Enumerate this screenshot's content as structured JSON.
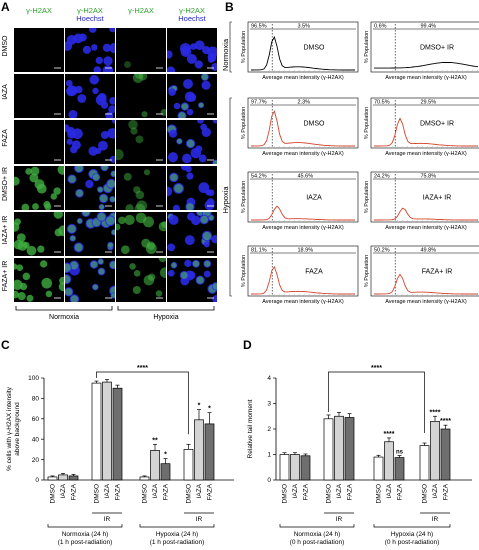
{
  "panel_labels": {
    "A": "A",
    "B": "B",
    "C": "C",
    "D": "D"
  },
  "panelA": {
    "col_headers": [
      {
        "line1": "γ-H2AX",
        "line2": "",
        "color1": "#2ca02c",
        "color2": ""
      },
      {
        "line1": "γ-H2AX",
        "line2": "Hoechst",
        "color1": "#2ca02c",
        "color2": "#1f1fcf"
      },
      {
        "line1": "γ-H2AX",
        "line2": "",
        "color1": "#2ca02c",
        "color2": ""
      },
      {
        "line1": "γ-H2AX",
        "line2": "Hoechst",
        "color1": "#2ca02c",
        "color2": "#1f1fcf"
      }
    ],
    "rows": [
      "DMSO",
      "IAZA",
      "FAZA",
      "DMSO+ IR",
      "IAZA+ IR",
      "FAZA+ IR"
    ],
    "bottom_labels": [
      "Normoxia",
      "Hypoxia"
    ]
  },
  "panelB": {
    "side_labels": [
      "Normoxia",
      "Hypoxia"
    ],
    "xlabel": "Average mean intensity (γ-H2AX)",
    "ylabel": "% Population",
    "plots": [
      {
        "label": "DMSO",
        "left": "96.5%",
        "right": "3.5%"
      },
      {
        "label": "DMSO+ IR",
        "left": "0.6%",
        "right": "99.4%"
      },
      {
        "label": "DMSO",
        "left": "97.7%",
        "right": "2.3%"
      },
      {
        "label": "DMSO+ IR",
        "left": "70.5%",
        "right": "29.5%"
      },
      {
        "label": "IAZA",
        "left": "54.2%",
        "right": "45.6%"
      },
      {
        "label": "IAZA+ IR",
        "left": "24.2%",
        "right": "75.8%"
      },
      {
        "label": "FAZA",
        "left": "81.1%",
        "right": "18.9%"
      },
      {
        "label": "FAZA+ IR",
        "left": "50.2%",
        "right": "49.8%"
      }
    ]
  },
  "panelC": {
    "ylabel_line1": "% cells with γ-H2AX intensity",
    "ylabel_line2": "above background",
    "y_ticks": [
      "0",
      "20",
      "40",
      "60",
      "80",
      "100"
    ],
    "categories": [
      "DMSO",
      "IAZA",
      "FAZA",
      "DMSO",
      "IAZA",
      "FAZA",
      "DMSO",
      "IAZA",
      "FAZA",
      "DMSO",
      "IAZA",
      "FAZA"
    ],
    "ir_label": "IR",
    "group_labels": [
      "Normoxia (24 h)",
      "Hypoxia (24 h)"
    ],
    "group_sublabels": [
      "(1 h post-radiation)",
      "(1 h post-radiation)"
    ],
    "sig_bracket": "****",
    "sig_marks": [
      "",
      "",
      "",
      "",
      "",
      "",
      "",
      "**",
      "*",
      "",
      "*",
      "*"
    ]
  },
  "panelD": {
    "ylabel": "Relative tail moment",
    "y_ticks": [
      "0",
      "1",
      "2",
      "3",
      "4"
    ],
    "categories": [
      "DMSO",
      "IAZA",
      "FAZA",
      "DMSO",
      "IAZA",
      "FAZA",
      "DMSO",
      "IAZA",
      "FAZA",
      "DMSO",
      "IAZA",
      "FAZA"
    ],
    "ir_label": "IR",
    "group_labels": [
      "Normoxia (24 h)",
      "Hypoxia (24 h)"
    ],
    "group_sublabels": [
      "(0 h post-radiation)",
      "(0 h post-radiation)"
    ],
    "sig_bracket": "****",
    "sig_marks": [
      "",
      "",
      "",
      "",
      "",
      "",
      "",
      "****",
      "ns",
      "",
      "****",
      "****"
    ]
  },
  "chart_data": [
    {
      "type": "bar",
      "title": "",
      "ylabel": "% cells with γ-H2AX intensity above background",
      "ylim": [
        0,
        100
      ],
      "categories": [
        "Normoxia DMSO",
        "Normoxia IAZA",
        "Normoxia FAZA",
        "Normoxia DMSO+IR",
        "Normoxia IAZA+IR",
        "Normoxia FAZA+IR",
        "Hypoxia DMSO",
        "Hypoxia IAZA",
        "Hypoxia FAZA",
        "Hypoxia DMSO+IR",
        "Hypoxia IAZA+IR",
        "Hypoxia FAZA+IR"
      ],
      "values": [
        3,
        5,
        4,
        95,
        96,
        90,
        3,
        29,
        16,
        30,
        59,
        55
      ],
      "errors": [
        1,
        1.5,
        1.5,
        2,
        2.5,
        3,
        1,
        6,
        5,
        5,
        10,
        11
      ],
      "fills": [
        "#ffffff",
        "#d4d4d4",
        "#6e6e6e",
        "#ffffff",
        "#d4d4d4",
        "#6e6e6e",
        "#ffffff",
        "#d4d4d4",
        "#6e6e6e",
        "#ffffff",
        "#d4d4d4",
        "#6e6e6e"
      ]
    },
    {
      "type": "bar",
      "title": "",
      "ylabel": "Relative tail moment",
      "ylim": [
        0,
        4
      ],
      "categories": [
        "Normoxia DMSO",
        "Normoxia IAZA",
        "Normoxia FAZA",
        "Normoxia DMSO+IR",
        "Normoxia IAZA+IR",
        "Normoxia FAZA+IR",
        "Hypoxia DMSO",
        "Hypoxia IAZA",
        "Hypoxia FAZA",
        "Hypoxia DMSO+IR",
        "Hypoxia IAZA+IR",
        "Hypoxia FAZA+IR"
      ],
      "values": [
        1.0,
        1.0,
        0.95,
        2.4,
        2.5,
        2.45,
        0.9,
        1.5,
        0.88,
        1.35,
        2.3,
        2.0
      ],
      "errors": [
        0.07,
        0.07,
        0.07,
        0.15,
        0.15,
        0.15,
        0.07,
        0.15,
        0.08,
        0.1,
        0.2,
        0.15
      ],
      "fills": [
        "#ffffff",
        "#d4d4d4",
        "#6e6e6e",
        "#ffffff",
        "#d4d4d4",
        "#6e6e6e",
        "#ffffff",
        "#d4d4d4",
        "#6e6e6e",
        "#ffffff",
        "#d4d4d4",
        "#6e6e6e"
      ]
    }
  ]
}
